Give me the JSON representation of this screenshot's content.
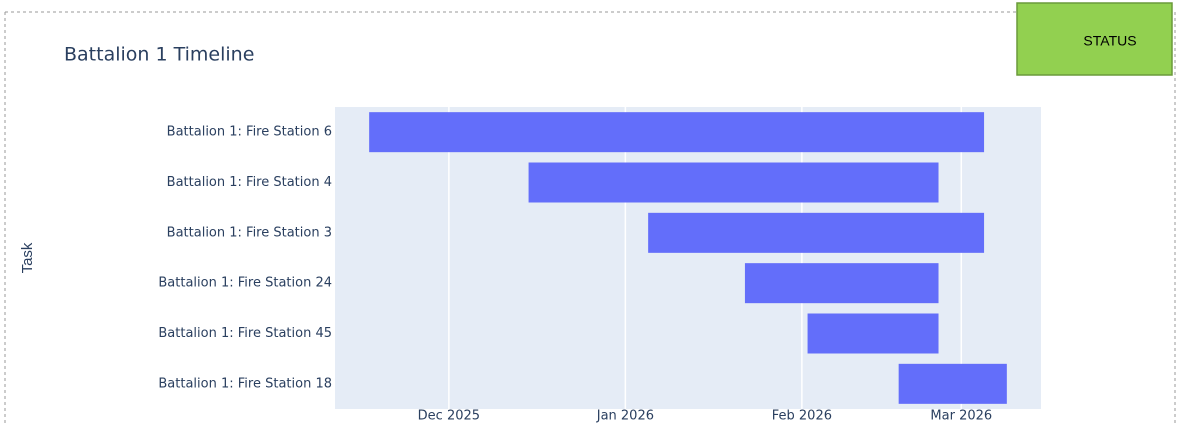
{
  "chart_data": {
    "type": "timeline",
    "title": "Battalion 1 Timeline",
    "y_label": "Task",
    "categories": [
      "Battalion 1: Fire Station 6",
      "Battalion 1: Fire Station 4",
      "Battalion 1: Fire Station 3",
      "Battalion 1: Fire Station 24",
      "Battalion 1: Fire Station 45",
      "Battalion 1: Fire Station 18"
    ],
    "start": [
      "2025-11-17",
      "2025-12-15",
      "2026-01-05",
      "2026-01-22",
      "2026-02-02",
      "2026-02-18"
    ],
    "end": [
      "2026-03-05",
      "2026-02-25",
      "2026-03-05",
      "2026-02-25",
      "2026-02-25",
      "2026-03-09"
    ],
    "color": "#636efa",
    "xlim": [
      "2025-11-11",
      "2026-03-15"
    ],
    "xticks": [
      {
        "value": "2025-12-01",
        "label": "Dec 2025"
      },
      {
        "value": "2026-01-01",
        "label": "Jan 2026"
      },
      {
        "value": "2026-02-01",
        "label": "Feb 2026"
      },
      {
        "value": "2026-03-01",
        "label": "Mar 2026"
      }
    ],
    "grid": true
  },
  "button": {
    "label": "STATUS"
  }
}
